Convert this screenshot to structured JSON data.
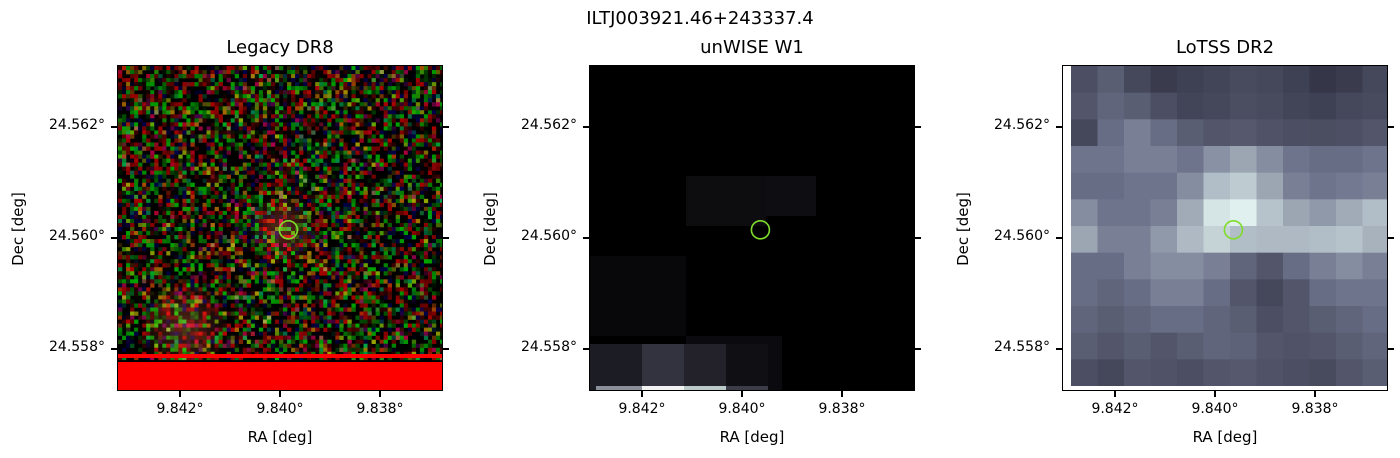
{
  "figure": {
    "title": "ILTJ003921.46+243337.4"
  },
  "panels": [
    {
      "title": "Legacy DR8",
      "xlabel": "RA [deg]",
      "ylabel": "Dec [deg]",
      "xticks": [
        "9.842°",
        "9.840°",
        "9.838°"
      ],
      "yticks": [
        "24.562°",
        "24.560°",
        "24.558°"
      ]
    },
    {
      "title": "unWISE W1",
      "xlabel": "RA [deg]",
      "ylabel": "Dec [deg]",
      "xticks": [
        "9.842°",
        "9.840°",
        "9.838°"
      ],
      "yticks": [
        "24.562°",
        "24.560°",
        "24.558°"
      ]
    },
    {
      "title": "LoTSS DR2",
      "xlabel": "RA [deg]",
      "ylabel": "Dec [deg]",
      "xticks": [
        "9.842°",
        "9.840°",
        "9.838°"
      ],
      "yticks": [
        "24.562°",
        "24.560°",
        "24.558°"
      ]
    }
  ],
  "marker": {
    "ra": 9.8397,
    "dec": 24.5601,
    "color": "#7fdd2a"
  },
  "colors": {
    "legacy_red": "#ff0000",
    "lotss_bright": "#dff0ee",
    "lotss_dark": "#2a2a3a"
  }
}
